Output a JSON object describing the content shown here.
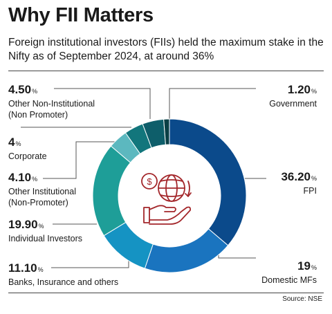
{
  "title": "Why FII Matters",
  "subtitle": "Foreign institutional investors (FIIs) held the maximum stake in the Nifty as of September 2024, at around 36%",
  "source": "Source: NSE",
  "chart_data": {
    "type": "donut",
    "unit": "%",
    "slices": [
      {
        "name": "FPI",
        "value": 36.2,
        "value_text": "36.20",
        "color": "#0b4a8b"
      },
      {
        "name": "Domestic MFs",
        "value": 19,
        "value_text": "19",
        "color": "#1a74bf"
      },
      {
        "name": "Banks, Insurance and others",
        "value": 11.1,
        "value_text": "11.10",
        "color": "#1593c3"
      },
      {
        "name": "Individual Investors",
        "value": 19.9,
        "value_text": "19.90",
        "color": "#1e9e98"
      },
      {
        "name": "Other Institutional (Non-Promoter)",
        "value": 4.1,
        "value_text": "4.10",
        "color": "#5cb8bf"
      },
      {
        "name": "Corporate",
        "value": 4,
        "value_text": "4",
        "color": "#12767c"
      },
      {
        "name": "Other Non-Institutional (Non Promoter)",
        "value": 4.5,
        "value_text": "4.50",
        "color": "#0e5e6a"
      },
      {
        "name": "Government",
        "value": 1.2,
        "value_text": "1.20",
        "color": "#0a3f45"
      }
    ],
    "labels": [
      {
        "value": "4.50",
        "unit": "%",
        "line1": "Other Non-Institutional",
        "line2": "(Non Promoter)"
      },
      {
        "value": "4",
        "unit": "%",
        "line1": "Corporate",
        "line2": ""
      },
      {
        "value": "4.10",
        "unit": "%",
        "line1": "Other Institutional",
        "line2": "(Non-Promoter)"
      },
      {
        "value": "19.90",
        "unit": "%",
        "line1": "Individual Investors",
        "line2": ""
      },
      {
        "value": "11.10",
        "unit": "%",
        "line1": "Banks, Insurance and others",
        "line2": ""
      },
      {
        "value": "1.20",
        "unit": "%",
        "line1": "Government",
        "line2": ""
      },
      {
        "value": "36.20",
        "unit": "%",
        "line1": "FPI",
        "line2": ""
      },
      {
        "value": "19",
        "unit": "%",
        "line1": "Domestic MFs",
        "line2": ""
      }
    ]
  },
  "center_icon": "dollar-globe-hand-icon",
  "icon_color": "#a3262a"
}
